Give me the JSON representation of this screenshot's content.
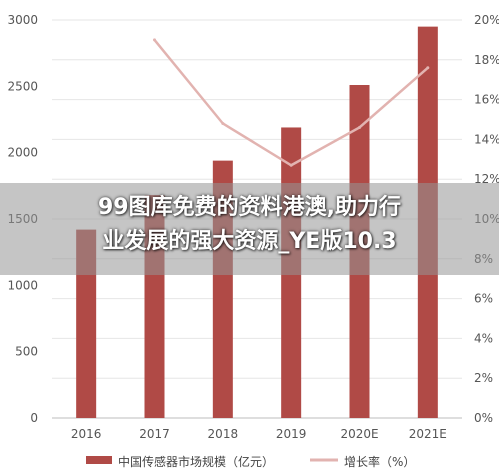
{
  "chart_data": {
    "type": "bar",
    "categories": [
      "2016",
      "2017",
      "2018",
      "2019",
      "2020E",
      "2021E"
    ],
    "series": [
      {
        "name": "中国传感器市场规模（亿元）",
        "type": "bar",
        "axis": "left",
        "values": [
          1420,
          1680,
          1940,
          2190,
          2510,
          2950
        ],
        "color": "#b04a46"
      },
      {
        "name": "增长率（%）",
        "type": "line",
        "axis": "right",
        "values": [
          null,
          19.0,
          14.8,
          12.7,
          14.6,
          17.6
        ],
        "color": "#e2b3b0"
      }
    ],
    "y_left": {
      "min": 0,
      "max": 3000,
      "ticks": [
        "0",
        "500",
        "1000",
        "1500",
        "2000",
        "2500",
        "3000"
      ]
    },
    "y_right": {
      "min": 0,
      "max": 20,
      "ticks": [
        "0%",
        "2%",
        "4%",
        "6%",
        "8%",
        "10%",
        "12%",
        "14%",
        "16%",
        "18%",
        "20%"
      ]
    },
    "grid": true,
    "legend_position": "bottom"
  },
  "overlay": {
    "line1": "99图库免费的资料港澳,助力行",
    "line2": "业发展的强大资源_YE版10.3"
  }
}
